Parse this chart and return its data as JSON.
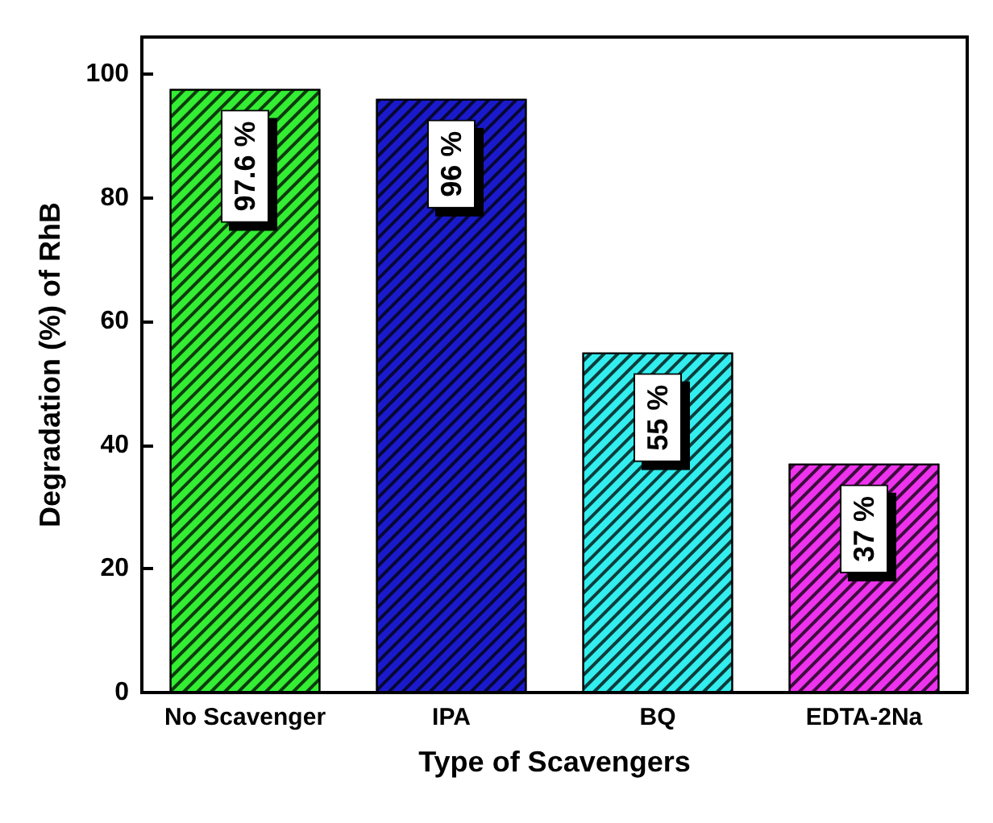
{
  "chart_data": {
    "type": "bar",
    "xlabel": "Type of Scavengers",
    "ylabel": "Degradation (%) of RhB",
    "categories": [
      "No Scavenger",
      "IPA",
      "BQ",
      "EDTA-2Na"
    ],
    "values": [
      97.6,
      96,
      55,
      37
    ],
    "value_labels": [
      "97.6 %",
      "96 %",
      "55 %",
      "37 %"
    ],
    "colors": [
      "#33ee33",
      "#1a1acc",
      "#33eeee",
      "#ee33ee"
    ],
    "ylim": [
      0,
      106
    ],
    "yticks": [
      0,
      20,
      40,
      60,
      80,
      100
    ],
    "grid": false
  }
}
